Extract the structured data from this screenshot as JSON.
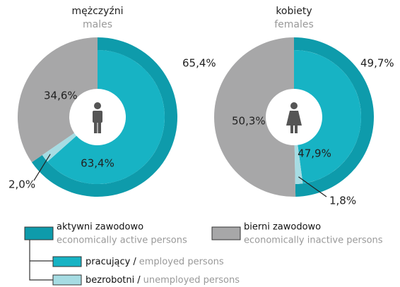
{
  "chart_data": [
    {
      "type": "donut",
      "title": "mężczyźni",
      "subtitle": "males",
      "outer": {
        "values": [
          65.4,
          34.6
        ],
        "value_labels": [
          "65,4%",
          "34,6%"
        ]
      },
      "inner": {
        "values": [
          63.4,
          2.0
        ],
        "value_labels": [
          "63,4%",
          "2,0%"
        ]
      }
    },
    {
      "type": "donut",
      "title": "kobiety",
      "subtitle": "females",
      "outer": {
        "values": [
          49.7,
          50.3
        ],
        "value_labels": [
          "49,7%",
          "50,3%"
        ]
      },
      "inner": {
        "values": [
          47.9,
          1.8
        ],
        "value_labels": [
          "47,9%",
          "1,8%"
        ]
      }
    }
  ],
  "legend": {
    "separator": "/",
    "items": [
      {
        "name": "aktywni zawodowo",
        "translation": "economically active persons",
        "color": "#0e9bab"
      },
      {
        "name": "bierni zawodowo",
        "translation": "economically inactive persons",
        "color": "#a7a7a8"
      },
      {
        "name": "pracujący",
        "translation": "employed persons",
        "color": "#17b3c4"
      },
      {
        "name": "bezrobotni",
        "translation": "unemployed persons",
        "color": "#a6dce3"
      }
    ]
  }
}
